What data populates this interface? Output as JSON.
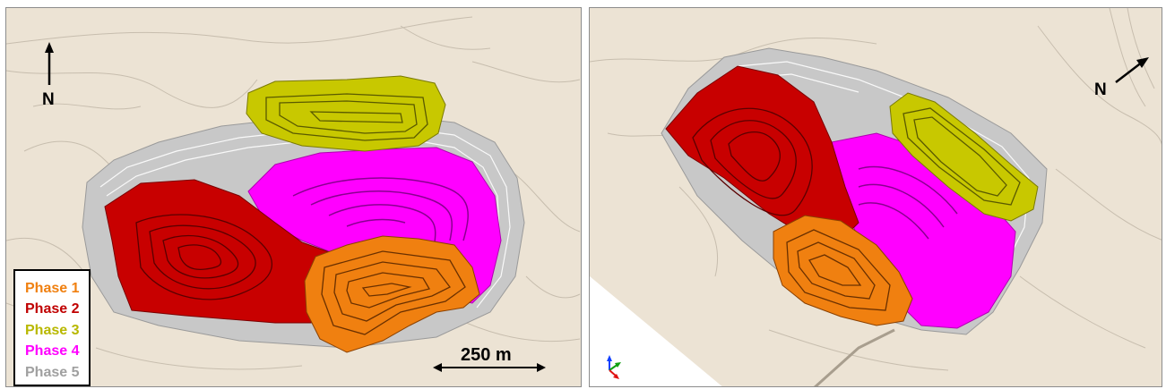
{
  "legend": {
    "items": [
      {
        "label": "Phase 1",
        "color": "#f08010"
      },
      {
        "label": "Phase 2",
        "color": "#c00000"
      },
      {
        "label": "Phase 3",
        "color": "#b8b800"
      },
      {
        "label": "Phase 4",
        "color": "#ff00ff"
      },
      {
        "label": "Phase 5",
        "color": "#a0a0a0"
      }
    ]
  },
  "left_view": {
    "north_label": "N",
    "scale_bar_label": "250 m"
  },
  "right_view": {
    "north_label": "N",
    "axis_triad_icon": "xyz-axes-icon"
  },
  "colors": {
    "terrain": "#ece3d4",
    "phase1": "#f08010",
    "phase2": "#c80000",
    "phase3": "#c8c800",
    "phase4": "#ff00ff",
    "phase5": "#c8c8c8"
  }
}
